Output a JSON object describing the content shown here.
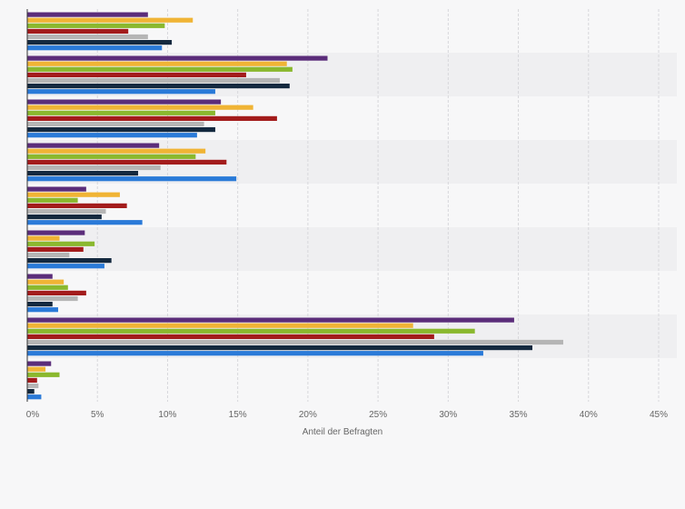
{
  "chart_data": {
    "type": "bar",
    "orientation": "horizontal",
    "xlabel": "Anteil der Befragten",
    "ylabel": "",
    "xlim": [
      0,
      45
    ],
    "x_ticks": [
      "0%",
      "5%",
      "10%",
      "15%",
      "20%",
      "25%",
      "30%",
      "35%",
      "40%",
      "45%"
    ],
    "grid": true,
    "legend": "none",
    "categories": [
      "",
      "",
      "",
      "",
      "",
      "",
      "",
      "",
      ""
    ],
    "series": [
      {
        "color": "#5b2d7a",
        "values": [
          8.6,
          21.4,
          13.8,
          9.4,
          4.2,
          4.1,
          1.8,
          34.7,
          1.7
        ]
      },
      {
        "color": "#f0b435",
        "values": [
          11.8,
          18.5,
          16.1,
          12.7,
          6.6,
          2.3,
          2.6,
          27.5,
          1.3
        ]
      },
      {
        "color": "#8ab82e",
        "values": [
          9.8,
          18.9,
          13.4,
          12.0,
          3.6,
          4.8,
          2.9,
          31.9,
          2.3
        ]
      },
      {
        "color": "#a31c1c",
        "values": [
          7.2,
          15.6,
          17.8,
          14.2,
          7.1,
          4.0,
          4.2,
          29.0,
          0.7
        ]
      },
      {
        "color": "#b5b5b5",
        "values": [
          8.6,
          18.0,
          12.6,
          9.5,
          5.6,
          3.0,
          3.6,
          38.2,
          0.8
        ]
      },
      {
        "color": "#14293f",
        "values": [
          10.3,
          18.7,
          13.4,
          7.9,
          5.3,
          6.0,
          1.8,
          36.0,
          0.5
        ]
      },
      {
        "color": "#2a7ad8",
        "values": [
          9.6,
          13.4,
          12.1,
          14.9,
          8.2,
          5.5,
          2.2,
          32.5,
          1.0
        ]
      }
    ]
  }
}
